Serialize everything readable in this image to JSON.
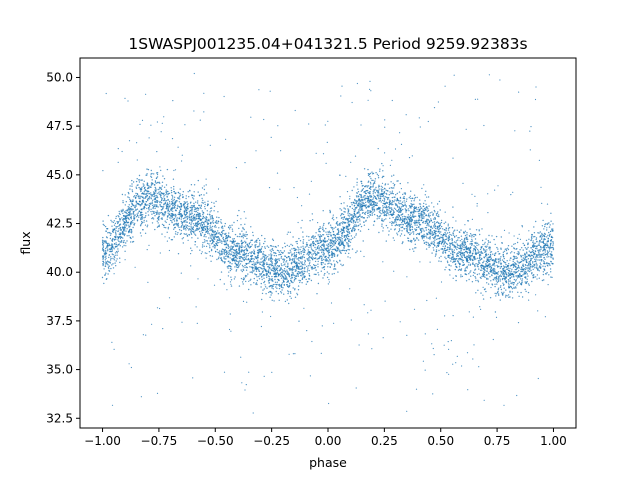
{
  "chart_data": {
    "type": "scatter",
    "title": "1SWASPJ001235.04+041321.5 Period 9259.92383s",
    "xlabel": "phase",
    "ylabel": "flux",
    "xlim": [
      -1.1,
      1.1
    ],
    "ylim": [
      32.0,
      51.0
    ],
    "xticks": [
      -1.0,
      -0.75,
      -0.5,
      -0.25,
      0.0,
      0.25,
      0.5,
      0.75,
      1.0
    ],
    "xtick_labels": [
      "−1.00",
      "−0.75",
      "−0.50",
      "−0.25",
      "0.00",
      "0.25",
      "0.50",
      "0.75",
      "1.00"
    ],
    "yticks": [
      32.5,
      35.0,
      37.5,
      40.0,
      42.5,
      45.0,
      47.5,
      50.0
    ],
    "ytick_labels": [
      "32.5",
      "35.0",
      "37.5",
      "40.0",
      "42.5",
      "45.0",
      "47.5",
      "50.0"
    ],
    "grid": false,
    "marker_color": "#1f77b4",
    "series": [
      {
        "x_range": [
          -1.0,
          1.0
        ],
        "trend_phase": [
          -1.0,
          -0.8,
          -0.6,
          -0.4,
          -0.2,
          0.0,
          0.2,
          0.4,
          0.6,
          0.8,
          1.0
        ],
        "trend_flux": [
          41.2,
          43.8,
          42.8,
          41.0,
          40.0,
          41.3,
          43.8,
          42.6,
          40.9,
          40.0,
          41.3
        ],
        "band_halfwidth": 1.3,
        "outlier_flux_range": [
          32.7,
          50.3
        ]
      }
    ]
  }
}
